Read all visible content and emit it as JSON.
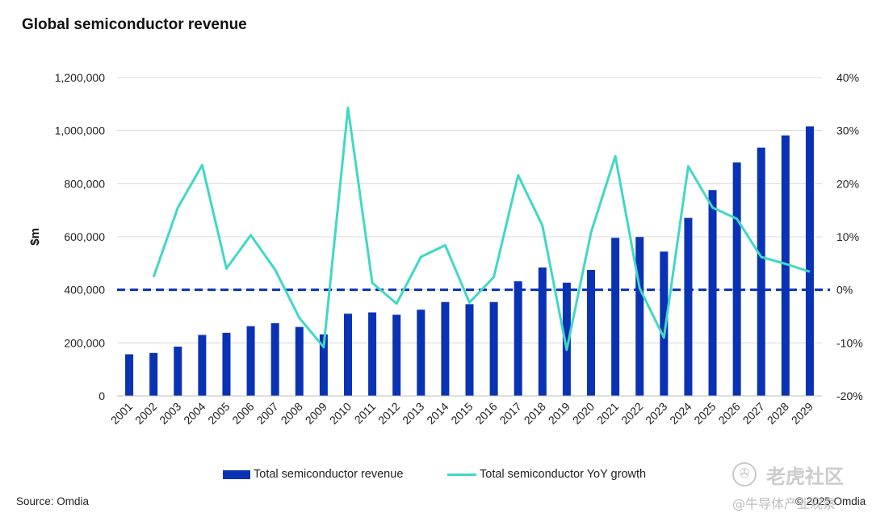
{
  "chart_data": {
    "type": "bar",
    "title": "Global semiconductor revenue",
    "ylabel": "$m",
    "categories": [
      "2001",
      "2002",
      "2003",
      "2004",
      "2005",
      "2006",
      "2007",
      "2008",
      "2009",
      "2010",
      "2011",
      "2012",
      "2013",
      "2014",
      "2015",
      "2016",
      "2017",
      "2018",
      "2019",
      "2020",
      "2021",
      "2022",
      "2023",
      "2024",
      "2025",
      "2026",
      "2027",
      "2028",
      "2029"
    ],
    "series": [
      {
        "name": "Total semiconductor revenue",
        "type": "bar",
        "axis": "left",
        "color": "#0a32b4",
        "values": [
          157000,
          162000,
          186000,
          230000,
          238000,
          263000,
          274000,
          260000,
          232000,
          310000,
          315000,
          306000,
          325000,
          354000,
          346000,
          354000,
          432000,
          484000,
          427000,
          475000,
          596000,
          599000,
          544000,
          671000,
          776000,
          880000,
          936000,
          982000,
          1016000
        ]
      },
      {
        "name": "Total semiconductor YoY growth",
        "type": "line",
        "axis": "right",
        "color": "#40d8c4",
        "values": [
          null,
          2.4,
          15.5,
          23.5,
          4.0,
          10.3,
          3.8,
          -5.3,
          -10.8,
          34.3,
          1.3,
          -2.6,
          6.2,
          8.4,
          -2.4,
          2.4,
          21.6,
          12.1,
          -11.3,
          10.8,
          25.2,
          0.3,
          -9.0,
          23.3,
          15.5,
          13.4,
          6.2,
          4.9,
          3.4
        ]
      }
    ],
    "ylim": [
      0,
      1200000
    ],
    "yticks": [
      "0",
      "200,000",
      "400,000",
      "600,000",
      "800,000",
      "1,000,000",
      "1,200,000"
    ],
    "y2lim": [
      -20,
      40
    ],
    "y2ticks": [
      "-20%",
      "-10%",
      "0%",
      "10%",
      "20%",
      "30%",
      "40%"
    ],
    "y2_reference_line": 0,
    "grid": "horizontal",
    "legend_position": "bottom"
  },
  "footer": {
    "source": "Source: Omdia",
    "copyright": "© 2025 Omdia"
  },
  "watermark": {
    "brand": "老虎社区",
    "sub": "@牛导体产业观察"
  }
}
